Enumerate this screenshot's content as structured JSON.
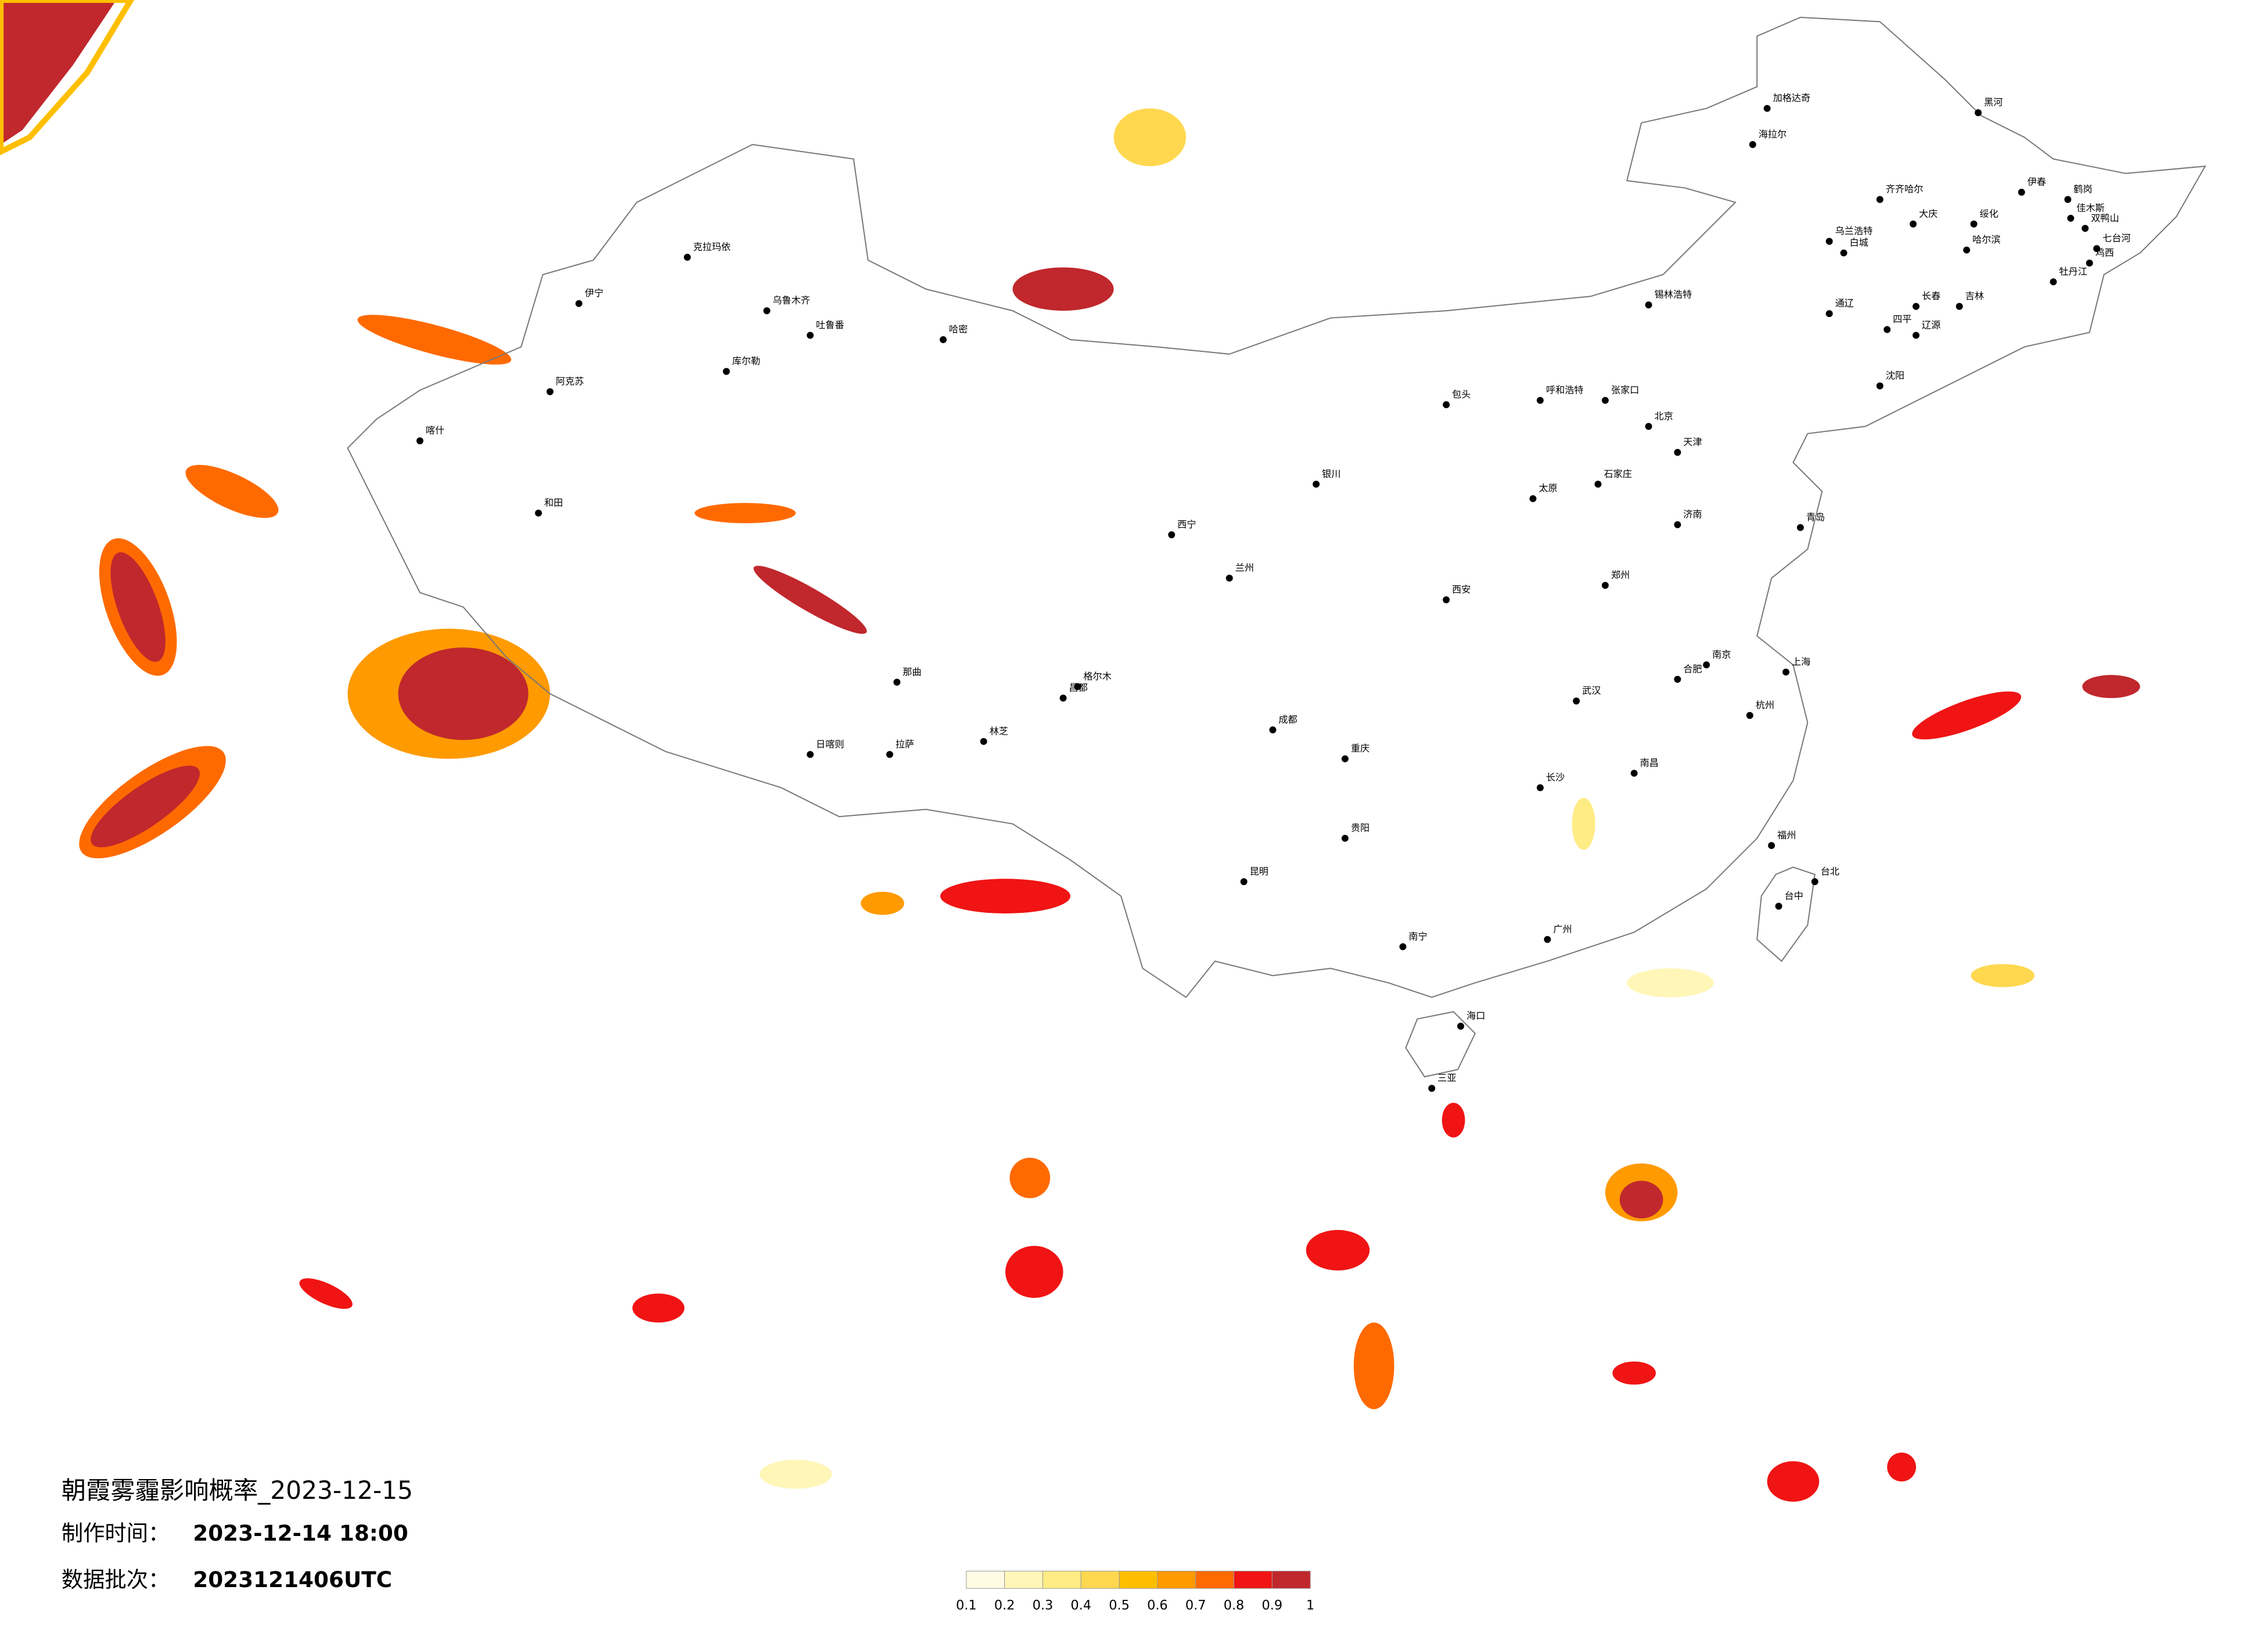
{
  "header": {
    "title": "朝霞雾霾影响概率_2023-12-15",
    "made_label": "制作时间：",
    "made_time": "2023-12-14 18:00",
    "batch_label": "数据批次：",
    "batch": "2023121406UTC"
  },
  "cities": [
    "加格达奇",
    "黑河",
    "海拉尔",
    "齐齐哈尔",
    "伊春",
    "鹤岗",
    "大庆",
    "绥化",
    "佳木斯",
    "双鸭山",
    "哈尔滨",
    "七台河",
    "鸡西",
    "乌兰浩特",
    "白城",
    "牡丹江",
    "锡林浩特",
    "长春",
    "吉林",
    "通辽",
    "四平",
    "辽源",
    "沈阳",
    "呼和浩特",
    "包头",
    "张家口",
    "北京",
    "天津",
    "石家庄",
    "太原",
    "济南",
    "青岛",
    "郑州",
    "西安",
    "兰州",
    "西宁",
    "银川",
    "乌鲁木齐",
    "克拉玛依",
    "伊宁",
    "库尔勒",
    "阿克苏",
    "喀什",
    "和田",
    "哈密",
    "吐鲁番",
    "拉萨",
    "日喀则",
    "那曲",
    "格尔木",
    "昌都",
    "林芝",
    "成都",
    "重庆",
    "贵阳",
    "昆明",
    "南宁",
    "广州",
    "武汉",
    "长沙",
    "南昌",
    "杭州",
    "上海",
    "南京",
    "福州",
    "台北",
    "台中",
    "海口",
    "三亚",
    "合肥"
  ],
  "colorbar": {
    "ticks": [
      0.1,
      0.2,
      0.3,
      0.4,
      0.5,
      0.6,
      0.7,
      0.8,
      0.9,
      1
    ],
    "colors": [
      "#fffbe3",
      "#fff6b8",
      "#ffec85",
      "#ffd850",
      "#ffbf00",
      "#ff9a00",
      "#ff6a00",
      "#f01414",
      "#c0282d"
    ]
  }
}
